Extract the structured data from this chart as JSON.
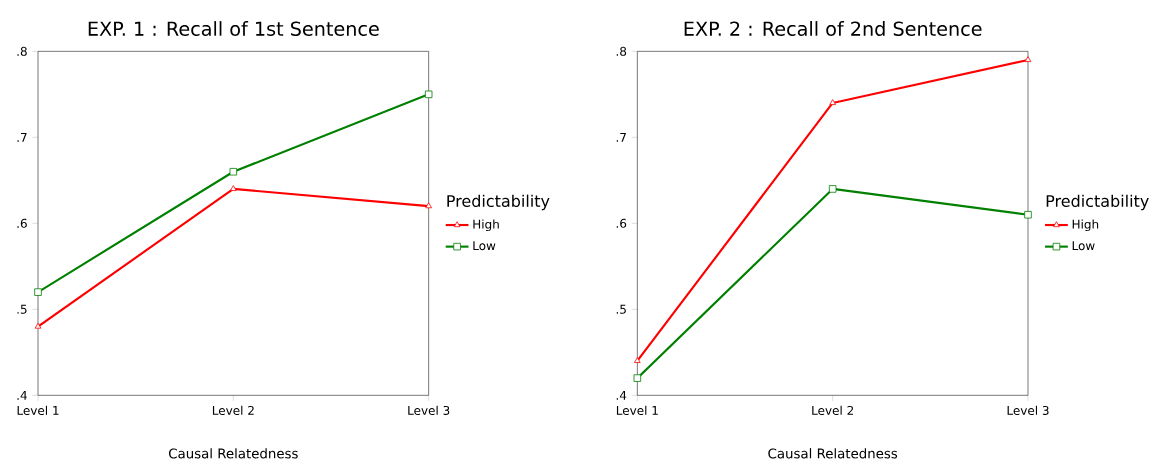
{
  "chart_data": [
    {
      "type": "line",
      "title": "EXP. 1 : Recall of 1st Sentence",
      "xlabel": "Causal Relatedness",
      "legend_title": "Predictability",
      "legend": "right",
      "grid": false,
      "categories": [
        "Level 1",
        "Level 2",
        "Level 3"
      ],
      "ylim": [
        0.4,
        0.8
      ],
      "yticks": [
        {
          "value": 0.4,
          "label": ".4"
        },
        {
          "value": 0.5,
          "label": ".5"
        },
        {
          "value": 0.6,
          "label": ".6"
        },
        {
          "value": 0.7,
          "label": ".7"
        },
        {
          "value": 0.8,
          "label": ".8"
        }
      ],
      "series": [
        {
          "name": "High",
          "color": "#ff0000",
          "marker": "triangle",
          "values": [
            0.48,
            0.64,
            0.62
          ]
        },
        {
          "name": "Low",
          "color": "#008000",
          "marker": "square",
          "values": [
            0.52,
            0.66,
            0.75
          ]
        }
      ]
    },
    {
      "type": "line",
      "title": "EXP. 2 : Recall of 2nd Sentence",
      "xlabel": "Causal Relatedness",
      "legend_title": "Predictability",
      "legend": "right",
      "grid": false,
      "categories": [
        "Level 1",
        "Level 2",
        "Level 3"
      ],
      "ylim": [
        0.4,
        0.8
      ],
      "yticks": [
        {
          "value": 0.4,
          "label": ".4"
        },
        {
          "value": 0.5,
          "label": ".5"
        },
        {
          "value": 0.6,
          "label": ".6"
        },
        {
          "value": 0.7,
          "label": ".7"
        },
        {
          "value": 0.8,
          "label": ".8"
        }
      ],
      "series": [
        {
          "name": "High",
          "color": "#ff0000",
          "marker": "triangle",
          "values": [
            0.44,
            0.74,
            0.79
          ]
        },
        {
          "name": "Low",
          "color": "#008000",
          "marker": "square",
          "values": [
            0.42,
            0.64,
            0.61
          ]
        }
      ]
    }
  ]
}
